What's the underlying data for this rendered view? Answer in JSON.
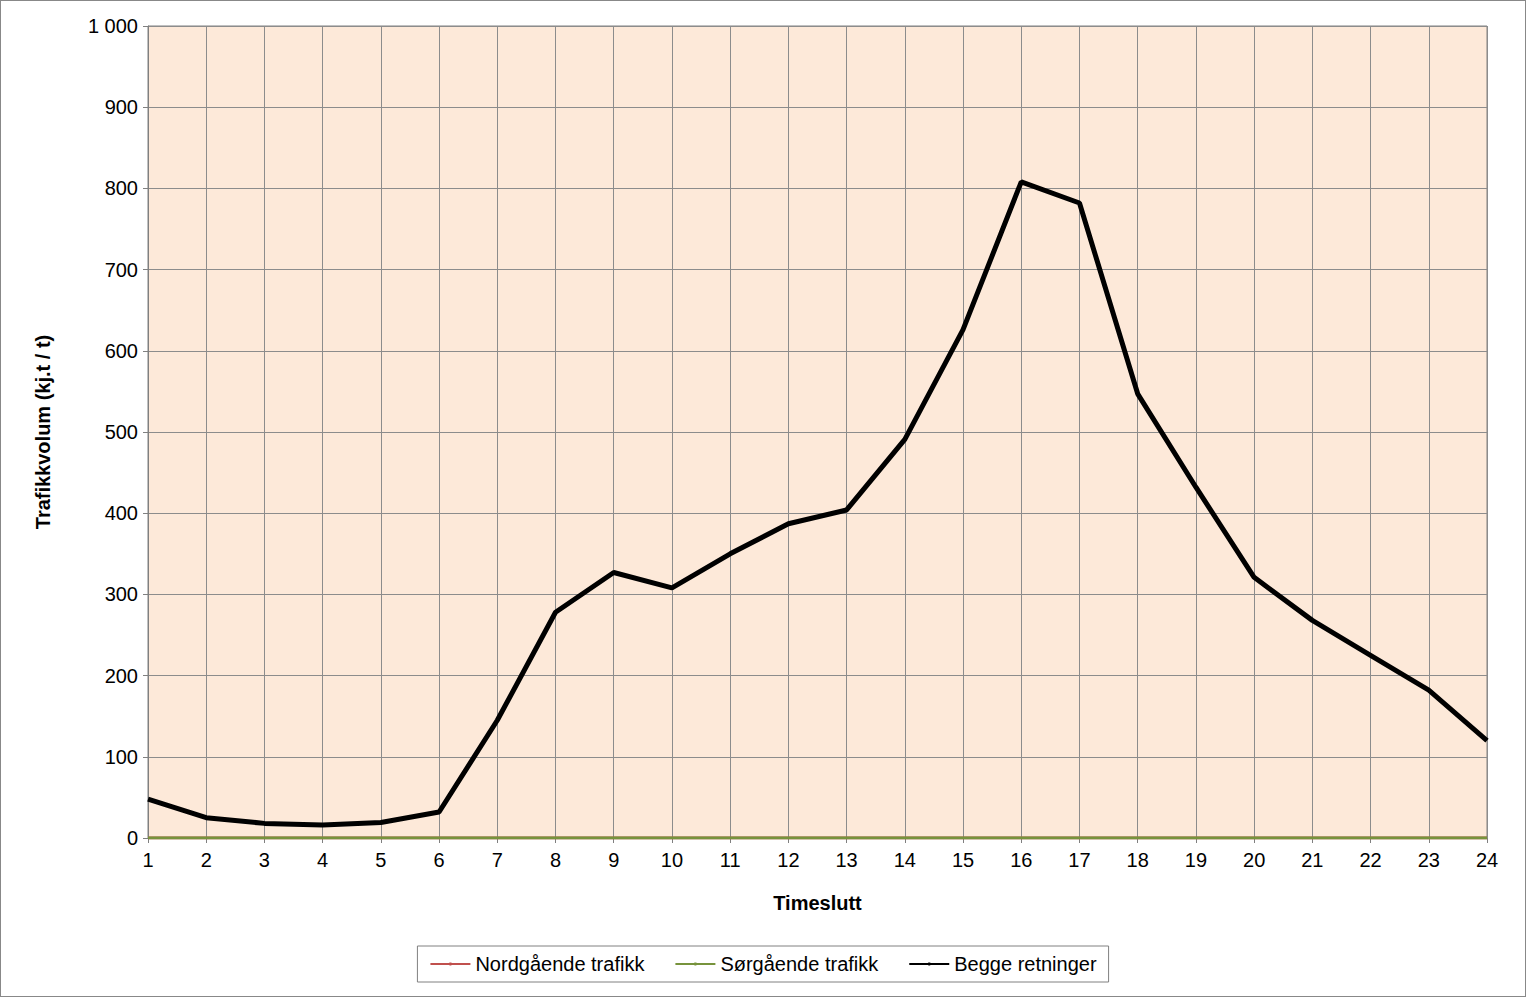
{
  "chart_data": {
    "type": "line",
    "x_label": "Timeslutt",
    "y_label": "Trafikkvolum (kj.t / t)",
    "categories": [
      "1",
      "2",
      "3",
      "4",
      "5",
      "6",
      "7",
      "8",
      "9",
      "10",
      "11",
      "12",
      "13",
      "14",
      "15",
      "16",
      "17",
      "18",
      "19",
      "20",
      "21",
      "22",
      "23",
      "24"
    ],
    "series": [
      {
        "name": "Nordgående trafikk",
        "color": "#c0504d",
        "values": [
          0,
          0,
          0,
          0,
          0,
          0,
          0,
          0,
          0,
          0,
          0,
          0,
          0,
          0,
          0,
          0,
          0,
          0,
          0,
          0,
          0,
          0,
          0,
          0
        ]
      },
      {
        "name": "Sørgående trafikk",
        "color": "#77933c",
        "values": [
          0,
          0,
          0,
          0,
          0,
          0,
          0,
          0,
          0,
          0,
          0,
          0,
          0,
          0,
          0,
          0,
          0,
          0,
          0,
          0,
          0,
          0,
          0,
          0
        ]
      },
      {
        "name": "Begge retninger",
        "color": "#000000",
        "values": [
          48,
          25,
          18,
          16,
          19,
          32,
          145,
          278,
          327,
          308,
          350,
          387,
          404,
          491,
          626,
          808,
          782,
          547,
          432,
          321,
          268,
          225,
          182,
          120
        ]
      }
    ],
    "ylim": [
      0,
      1000
    ],
    "yticks": [
      0,
      100,
      200,
      300,
      400,
      500,
      600,
      700,
      800,
      900,
      {
        "value": 1000,
        "label": "1 000"
      }
    ],
    "grid": true,
    "legend": "bottom"
  }
}
